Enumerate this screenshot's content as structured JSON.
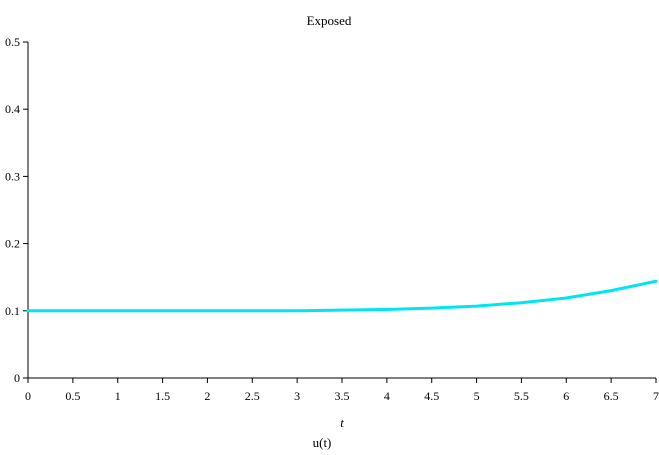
{
  "chart_data": {
    "type": "line",
    "title": "Exposed",
    "xlabel": "t",
    "ylabel": "",
    "legend_label": "u(t)",
    "legend_position": "bottom",
    "xlim": [
      0,
      7
    ],
    "ylim": [
      0,
      0.5
    ],
    "xticks": [
      "0",
      "0.5",
      "1",
      "1.5",
      "2",
      "2.5",
      "3",
      "3.5",
      "4",
      "4.5",
      "5",
      "5.5",
      "6",
      "6.5",
      "7"
    ],
    "yticks": [
      "0",
      "0.1",
      "0.2",
      "0.3",
      "0.4",
      "0.5"
    ],
    "grid": false,
    "series": [
      {
        "color": "#00e5ee",
        "x": [
          0,
          0.5,
          1,
          1.5,
          2,
          2.5,
          3,
          3.5,
          4,
          4.5,
          5,
          5.5,
          6,
          6.5,
          7
        ],
        "y": [
          0.1,
          0.1,
          0.1,
          0.1,
          0.1,
          0.1,
          0.1,
          0.101,
          0.102,
          0.104,
          0.107,
          0.112,
          0.119,
          0.13,
          0.144
        ]
      }
    ]
  }
}
